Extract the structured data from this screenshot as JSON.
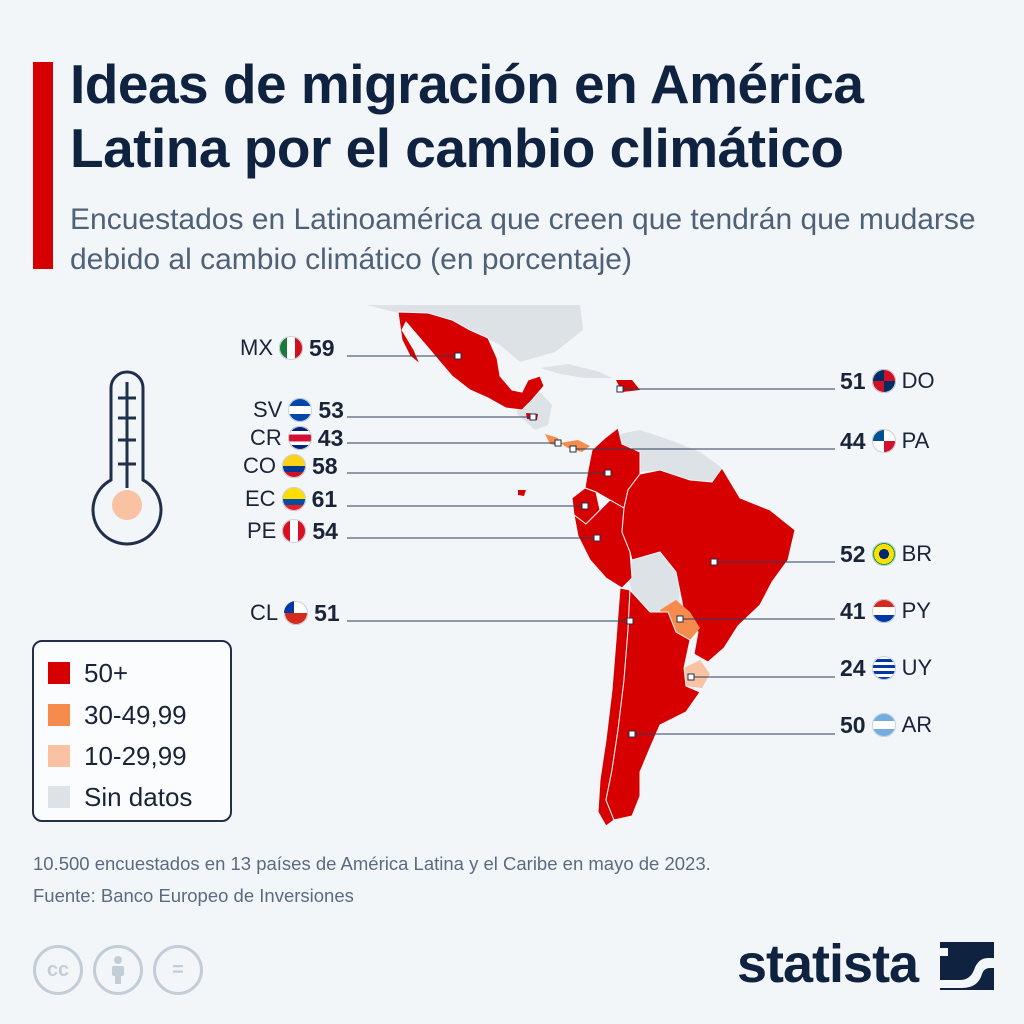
{
  "header": {
    "title": "Ideas de migración en América Latina por el cambio climático",
    "subtitle": "Encuestados en Latinoamérica que creen que tendrán que mudarse debido al cambio climático (en porcentaje)"
  },
  "chart_data": {
    "type": "choropleth-map",
    "title": "Ideas de migración en América Latina por el cambio climático",
    "unit": "%",
    "countries": [
      {
        "code": "MX",
        "value": 59,
        "category": "50+"
      },
      {
        "code": "SV",
        "value": 53,
        "category": "50+"
      },
      {
        "code": "CR",
        "value": 43,
        "category": "30-49,99"
      },
      {
        "code": "CO",
        "value": 58,
        "category": "50+"
      },
      {
        "code": "EC",
        "value": 61,
        "category": "50+"
      },
      {
        "code": "PE",
        "value": 54,
        "category": "50+"
      },
      {
        "code": "CL",
        "value": 51,
        "category": "50+"
      },
      {
        "code": "DO",
        "value": 51,
        "category": "50+"
      },
      {
        "code": "PA",
        "value": 44,
        "category": "30-49,99"
      },
      {
        "code": "BR",
        "value": 52,
        "category": "50+"
      },
      {
        "code": "PY",
        "value": 41,
        "category": "30-49,99"
      },
      {
        "code": "UY",
        "value": 24,
        "category": "10-29,99"
      },
      {
        "code": "AR",
        "value": 50,
        "category": "50+"
      }
    ]
  },
  "legend": {
    "items": [
      {
        "label": "50+",
        "color": "#d70000"
      },
      {
        "label": "30-49,99",
        "color": "#f58b4c"
      },
      {
        "label": "10-29,99",
        "color": "#f9c2a3"
      },
      {
        "label": "Sin datos",
        "color": "#dde2e7"
      }
    ]
  },
  "footer": {
    "note": "10.500 encuestados en 13 países de América Latina y el Caribe en mayo de 2023.",
    "source": "Fuente: Banco Europeo de Inversiones",
    "brand": "statista",
    "license_icons": [
      "cc-icon",
      "attribution-icon",
      "no-derivatives-icon"
    ]
  },
  "colors": {
    "accent": "#d70000",
    "title": "#0f2340",
    "nodata": "#dde2e7",
    "leader": "#2c3e5a"
  }
}
